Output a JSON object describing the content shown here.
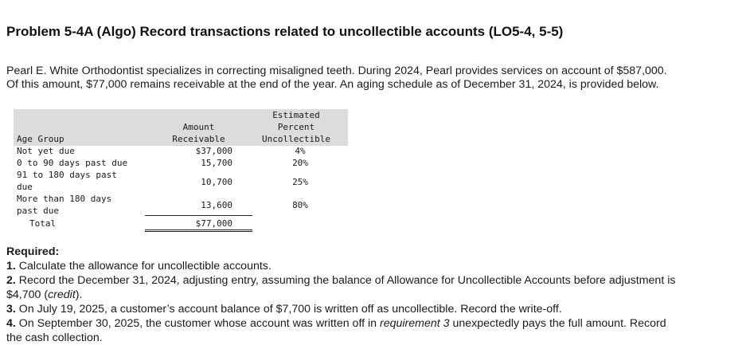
{
  "title": "Problem 5-4A (Algo) Record transactions related to uncollectible accounts (LO5-4, 5-5)",
  "intro": {
    "line1": "Pearl E. White Orthodontist specializes in correcting misaligned teeth. During 2024, Pearl provides services on account of $587,000.",
    "line2": "Of this amount, $77,000 remains receivable at the end of the year. An aging schedule as of December 31, 2024, is provided below."
  },
  "aging_table": {
    "headers": {
      "age_group": "Age Group",
      "amount_line1": "Amount",
      "amount_line2": "Receivable",
      "pct_line1": "Estimated",
      "pct_line2": "Percent",
      "pct_line3": "Uncollectible"
    },
    "rows": [
      {
        "group_line1": "Not yet due",
        "group_line2": "",
        "amount": "$37,000",
        "percent": "4%"
      },
      {
        "group_line1": "0 to 90 days past due",
        "group_line2": "",
        "amount": "15,700",
        "percent": "20%"
      },
      {
        "group_line1": "91 to 180 days past",
        "group_line2": "due",
        "amount": "10,700",
        "percent": "25%"
      },
      {
        "group_line1": "More than 180 days",
        "group_line2": "past due",
        "amount": "13,600",
        "percent": "80%"
      }
    ],
    "total_label": "Total",
    "total_amount": "$77,000"
  },
  "required": {
    "heading": "Required:",
    "items": [
      {
        "num": "1.",
        "text": "Calculate the allowance for uncollectible accounts."
      },
      {
        "num": "2.",
        "text_a": "Record the December 31, 2024, adjusting entry, assuming the balance of Allowance for Uncollectible Accounts before adjustment is",
        "text_b": "$4,700 (",
        "text_italic": "credit",
        "text_c": ")."
      },
      {
        "num": "3.",
        "text": "On July 19, 2025, a customer’s account balance of $7,700 is written off as uncollectible. Record the write-off."
      },
      {
        "num": "4.",
        "text_a": "On September 30, 2025, the customer whose account was written off in ",
        "text_italic": "requirement 3",
        "text_b": " unexpectedly pays the full amount. Record",
        "text_c": "the cash collection."
      }
    ]
  }
}
